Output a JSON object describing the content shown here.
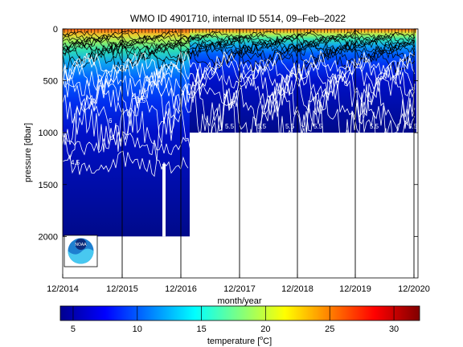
{
  "chart_data": {
    "type": "heatmap",
    "title": "WMO ID 4901710, internal ID 5514, 09–Feb–2022",
    "xlabel": "month/year",
    "ylabel": "pressure [dbar]",
    "x_ticks": [
      "12/2014",
      "12/2015",
      "12/2016",
      "12/2017",
      "12/2018",
      "12/2019",
      "12/2020"
    ],
    "y_ticks": [
      "0",
      "500",
      "1000",
      "1500",
      "2000"
    ],
    "ylim": [
      2400,
      0
    ],
    "y_reversed": true,
    "colorbar": {
      "label_prefix": "temperature [",
      "label_unit_sup": "o",
      "label_unit": "C]",
      "ticks": [
        "5",
        "10",
        "15",
        "20",
        "25",
        "30"
      ],
      "range": [
        4,
        32
      ],
      "colormap": "jet"
    },
    "contour_labels": [
      "4.5",
      "5",
      "5.5",
      "6"
    ],
    "depth_coverage": [
      {
        "period": "12/2014 - 03/2016",
        "max_pressure": 2000
      },
      {
        "period": "03/2016 - 12/2020",
        "max_pressure": 1000
      }
    ],
    "grid": "vertical-dec",
    "legend": "none"
  },
  "logo": {
    "name": "noaa-logo",
    "text": "NOAA"
  }
}
